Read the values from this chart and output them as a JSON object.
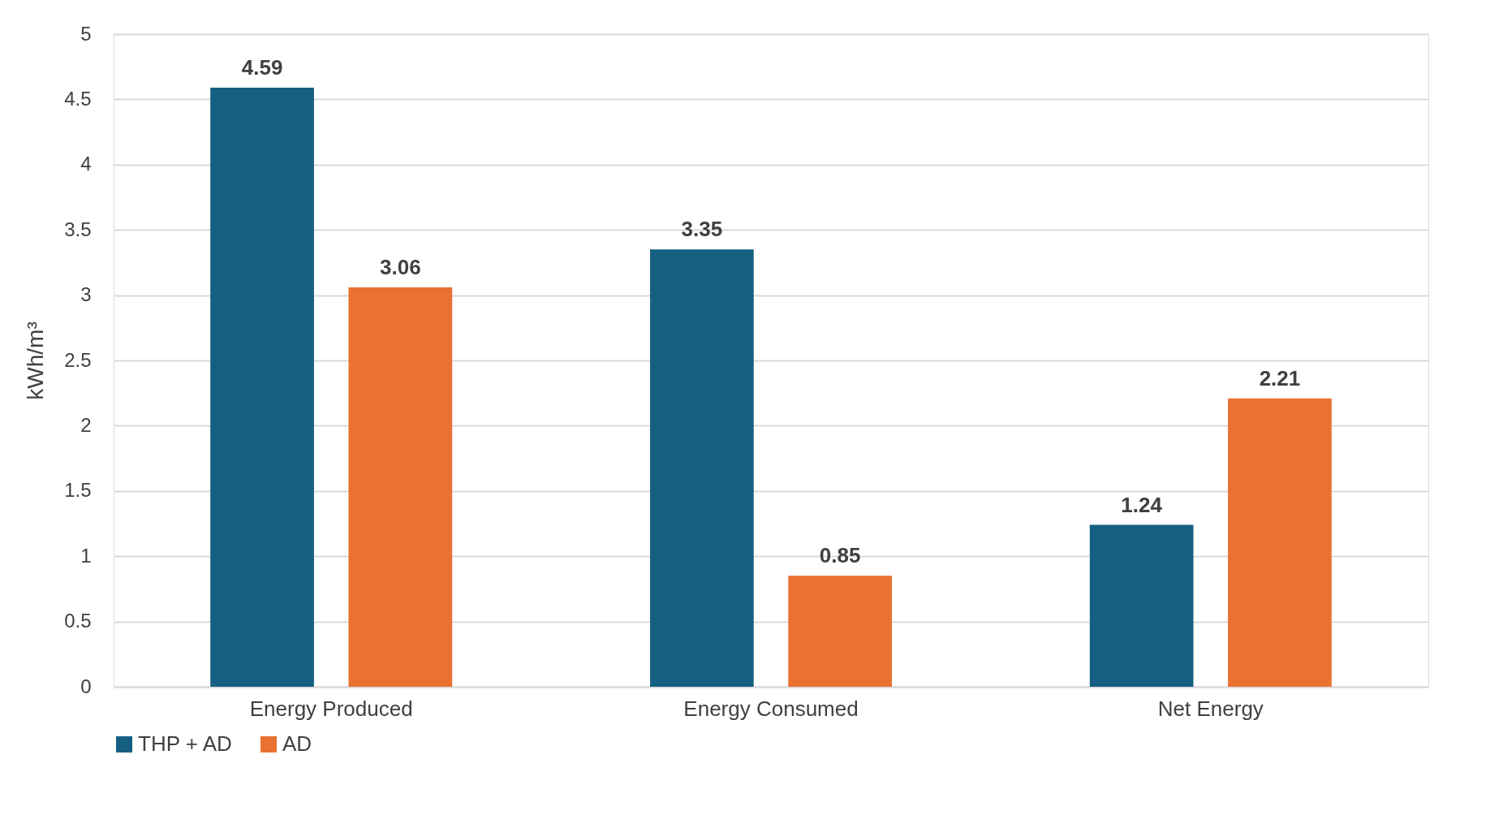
{
  "chart_data": {
    "type": "bar",
    "ylabel": "kWh/m³",
    "categories": [
      "Energy Produced",
      "Energy Consumed",
      "Net Energy"
    ],
    "series": [
      {
        "name": "THP + AD",
        "color": "#156082",
        "values": [
          4.59,
          3.35,
          1.24
        ]
      },
      {
        "name": "AD",
        "color": "#e97132",
        "values": [
          3.06,
          0.85,
          2.21
        ]
      }
    ],
    "ylim": [
      0,
      5
    ],
    "yticks": [
      0,
      0.5,
      1,
      1.5,
      2,
      2.5,
      3,
      3.5,
      4,
      4.5,
      5
    ],
    "grid": "y",
    "legend": "bottom",
    "data_labels": true
  }
}
